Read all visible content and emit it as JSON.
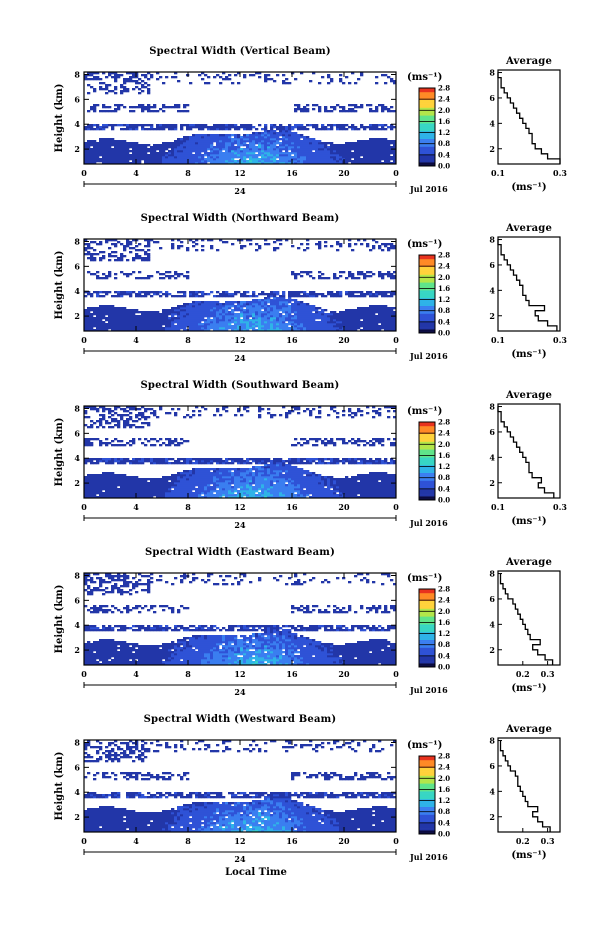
{
  "colors": {
    "no_data": "#ffffff",
    "colormap": [
      "#0a0a40",
      "#2236a8",
      "#2f52d6",
      "#3a7ef0",
      "#2fb3e8",
      "#37d6c4",
      "#5fe48a",
      "#b3e64a",
      "#ffd23a",
      "#ff8a26",
      "#e8331e"
    ]
  },
  "common": {
    "x_label": "Local Time",
    "date_label": "Jul 2016",
    "day_label": "24",
    "avg_title": "Average",
    "unit_label": "(ms⁻¹)",
    "avg_xlabel": "(ms⁻¹)",
    "y_label": "Height (km)"
  },
  "chart_data": [
    {
      "type": "heatmap",
      "title": "Spectral Width (Vertical Beam)",
      "ylabel": "Height (km)",
      "x_ticks": [
        "0",
        "4",
        "8",
        "12",
        "16",
        "20",
        "0"
      ],
      "y_ticks": [
        "8",
        "6",
        "4",
        "2"
      ],
      "xlim": [
        0,
        24
      ],
      "ylim": [
        0.8,
        8.2
      ],
      "colorbar": {
        "label": "(ms⁻¹)",
        "ticks": [
          "2.8",
          "2.4",
          "2.0",
          "1.6",
          "1.2",
          "0.8",
          "0.4",
          "0.0"
        ],
        "range": [
          0,
          2.8
        ]
      },
      "average_profile": {
        "title": "Average",
        "xlabel": "(ms⁻¹)",
        "x_ticks": [
          "0.1",
          "0.3"
        ],
        "xlim": [
          0.1,
          0.3
        ],
        "ylim": [
          0.8,
          8.2
        ],
        "y_ticks": [
          "8",
          "6",
          "4",
          "2"
        ],
        "height_km": [
          1.0,
          1.4,
          1.8,
          2.2,
          2.6,
          3.0,
          3.4,
          3.8,
          4.2,
          4.6,
          5.0,
          5.4,
          5.8,
          6.2,
          6.6,
          7.0,
          7.4,
          7.8
        ],
        "width_ms": [
          0.3,
          0.26,
          0.24,
          0.22,
          0.21,
          0.21,
          0.2,
          0.19,
          0.18,
          0.17,
          0.16,
          0.15,
          0.14,
          0.13,
          0.12,
          0.11,
          0.11,
          0.1
        ]
      }
    },
    {
      "type": "heatmap",
      "title": "Spectral Width (Northward Beam)",
      "ylabel": "Height (km)",
      "x_ticks": [
        "0",
        "4",
        "8",
        "12",
        "16",
        "20",
        "0"
      ],
      "y_ticks": [
        "8",
        "6",
        "4",
        "2"
      ],
      "xlim": [
        0,
        24
      ],
      "ylim": [
        0.8,
        8.2
      ],
      "colorbar": {
        "label": "(ms⁻¹)",
        "ticks": [
          "2.8",
          "2.4",
          "2.0",
          "1.6",
          "1.2",
          "0.8",
          "0.4",
          "0.0"
        ],
        "range": [
          0,
          2.8
        ]
      },
      "average_profile": {
        "title": "Average",
        "xlabel": "(ms⁻¹)",
        "x_ticks": [
          "0.1",
          "0.3"
        ],
        "xlim": [
          0.1,
          0.3
        ],
        "ylim": [
          0.8,
          8.2
        ],
        "y_ticks": [
          "8",
          "6",
          "4",
          "2"
        ],
        "height_km": [
          1.0,
          1.4,
          1.8,
          2.2,
          2.6,
          3.0,
          3.4,
          3.8,
          4.2,
          4.6,
          5.0,
          5.4,
          5.8,
          6.2,
          6.6,
          7.0,
          7.4,
          7.8
        ],
        "width_ms": [
          0.29,
          0.26,
          0.23,
          0.22,
          0.25,
          0.2,
          0.19,
          0.18,
          0.18,
          0.17,
          0.16,
          0.15,
          0.14,
          0.13,
          0.12,
          0.11,
          0.11,
          0.1
        ]
      }
    },
    {
      "type": "heatmap",
      "title": "Spectral Width (Southward Beam)",
      "ylabel": "Height (km)",
      "x_ticks": [
        "0",
        "4",
        "8",
        "12",
        "16",
        "20",
        "0"
      ],
      "y_ticks": [
        "8",
        "6",
        "4",
        "2"
      ],
      "xlim": [
        0,
        24
      ],
      "ylim": [
        0.8,
        8.2
      ],
      "colorbar": {
        "label": "(ms⁻¹)",
        "ticks": [
          "2.8",
          "2.4",
          "2.0",
          "1.6",
          "1.2",
          "0.8",
          "0.4",
          "0.0"
        ],
        "range": [
          0,
          2.8
        ]
      },
      "average_profile": {
        "title": "Average",
        "xlabel": "(ms⁻¹)",
        "x_ticks": [
          "0.1",
          "0.3"
        ],
        "xlim": [
          0.1,
          0.3
        ],
        "ylim": [
          0.8,
          8.2
        ],
        "y_ticks": [
          "8",
          "6",
          "4",
          "2"
        ],
        "height_km": [
          1.0,
          1.4,
          1.8,
          2.2,
          2.6,
          3.0,
          3.4,
          3.8,
          4.2,
          4.6,
          5.0,
          5.4,
          5.8,
          6.2,
          6.6,
          7.0,
          7.4,
          7.8
        ],
        "width_ms": [
          0.28,
          0.25,
          0.23,
          0.24,
          0.21,
          0.2,
          0.2,
          0.19,
          0.18,
          0.17,
          0.16,
          0.15,
          0.14,
          0.13,
          0.12,
          0.11,
          0.11,
          0.1
        ]
      }
    },
    {
      "type": "heatmap",
      "title": "Spectral Width (Eastward Beam)",
      "ylabel": "Height (km)",
      "x_ticks": [
        "0",
        "4",
        "8",
        "12",
        "16",
        "20",
        "0"
      ],
      "y_ticks": [
        "8",
        "6",
        "4",
        "2"
      ],
      "xlim": [
        0,
        24
      ],
      "ylim": [
        0.8,
        8.2
      ],
      "colorbar": {
        "label": "(ms⁻¹)",
        "ticks": [
          "2.8",
          "2.4",
          "2.0",
          "1.6",
          "1.2",
          "0.8",
          "0.4",
          "0.0"
        ],
        "range": [
          0,
          2.8
        ]
      },
      "average_profile": {
        "title": "Average",
        "xlabel": "(ms⁻¹)",
        "x_ticks": [
          "0.2",
          "0.3"
        ],
        "xlim": [
          0.1,
          0.35
        ],
        "ylim": [
          0.8,
          8.2
        ],
        "y_ticks": [
          "8",
          "6",
          "4",
          "2"
        ],
        "height_km": [
          1.0,
          1.4,
          1.8,
          2.2,
          2.6,
          3.0,
          3.4,
          3.8,
          4.2,
          4.6,
          5.0,
          5.4,
          5.8,
          6.2,
          6.6,
          7.0,
          7.4,
          7.8
        ],
        "width_ms": [
          0.32,
          0.29,
          0.26,
          0.24,
          0.27,
          0.23,
          0.22,
          0.21,
          0.2,
          0.19,
          0.18,
          0.17,
          0.16,
          0.14,
          0.13,
          0.12,
          0.11,
          0.11
        ]
      }
    },
    {
      "type": "heatmap",
      "title": "Spectral Width (Westward Beam)",
      "ylabel": "Height (km)",
      "x_ticks": [
        "0",
        "4",
        "8",
        "12",
        "16",
        "20",
        "0"
      ],
      "y_ticks": [
        "8",
        "6",
        "4",
        "2"
      ],
      "xlim": [
        0,
        24
      ],
      "ylim": [
        0.8,
        8.2
      ],
      "colorbar": {
        "label": "(ms⁻¹)",
        "ticks": [
          "2.8",
          "2.4",
          "2.0",
          "1.6",
          "1.2",
          "0.8",
          "0.4",
          "0.0"
        ],
        "range": [
          0,
          2.8
        ]
      },
      "average_profile": {
        "title": "Average",
        "xlabel": "(ms⁻¹)",
        "x_ticks": [
          "0.2",
          "0.3"
        ],
        "xlim": [
          0.1,
          0.35
        ],
        "ylim": [
          0.8,
          8.2
        ],
        "y_ticks": [
          "8",
          "6",
          "4",
          "2"
        ],
        "height_km": [
          1.0,
          1.4,
          1.8,
          2.2,
          2.6,
          3.0,
          3.4,
          3.8,
          4.2,
          4.6,
          5.0,
          5.4,
          5.8,
          6.2,
          6.6,
          7.0,
          7.4,
          7.8
        ],
        "width_ms": [
          0.31,
          0.28,
          0.26,
          0.24,
          0.26,
          0.22,
          0.21,
          0.2,
          0.19,
          0.18,
          0.18,
          0.17,
          0.15,
          0.14,
          0.13,
          0.12,
          0.11,
          0.11
        ]
      }
    }
  ]
}
